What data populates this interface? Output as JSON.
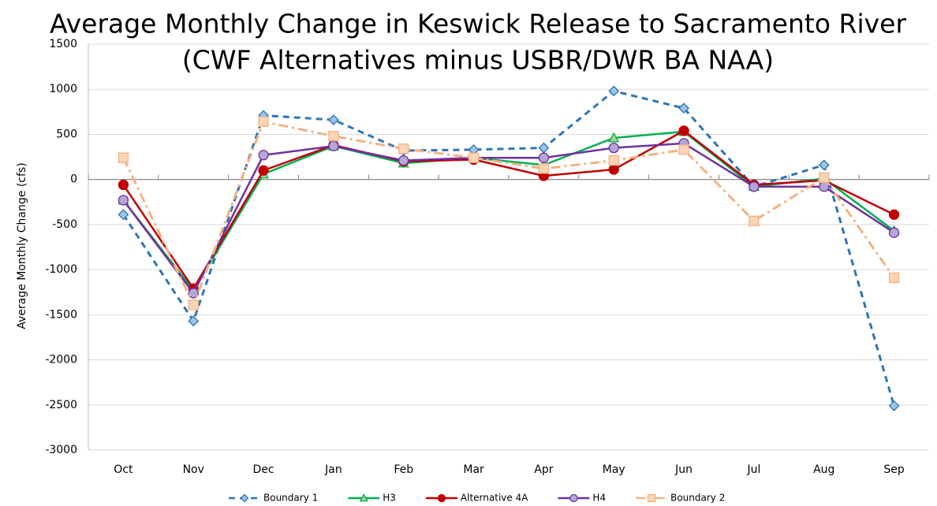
{
  "chart_data": {
    "type": "line",
    "title": "Average Monthly Change in Keswick Release to Sacramento River",
    "subtitle": "(CWF Alternatives minus USBR/DWR BA NAA)",
    "y_label": "Average Monthly Change (cfs)",
    "categories": [
      "Oct",
      "Nov",
      "Dec",
      "Jan",
      "Feb",
      "Mar",
      "Apr",
      "May",
      "Jun",
      "Jul",
      "Aug",
      "Sep"
    ],
    "series": [
      {
        "name": "Boundary 1",
        "color": "#2e75b6",
        "marker_fill": "#9dc3e6",
        "marker": "diamond",
        "dash": "8,6",
        "values": [
          -390,
          -1570,
          710,
          660,
          320,
          330,
          350,
          980,
          790,
          -80,
          160,
          -2510
        ]
      },
      {
        "name": "H3",
        "color": "#00b050",
        "marker_fill": "#a9d18e",
        "marker": "triangle",
        "dash": "none",
        "values": [
          -230,
          -1230,
          60,
          370,
          180,
          240,
          160,
          460,
          530,
          -80,
          10,
          -570
        ]
      },
      {
        "name": "Alternative 4A",
        "color": "#c00000",
        "marker_fill": "#c00000",
        "marker": "circle",
        "dash": "none",
        "values": [
          -60,
          -1210,
          100,
          380,
          200,
          220,
          40,
          110,
          540,
          -60,
          -10,
          -390
        ]
      },
      {
        "name": "H4",
        "color": "#7030a0",
        "marker_fill": "#b4a7d6",
        "marker": "circle",
        "dash": "none",
        "values": [
          -230,
          -1260,
          270,
          370,
          210,
          240,
          240,
          350,
          400,
          -80,
          -80,
          -590
        ]
      },
      {
        "name": "Boundary 2",
        "color": "#f4b183",
        "marker_fill": "#fbd5b5",
        "marker": "square",
        "dash": "12,5,3,5",
        "values": [
          240,
          -1390,
          640,
          480,
          340,
          240,
          120,
          210,
          330,
          -460,
          20,
          -1090
        ]
      }
    ],
    "ylim": [
      -3000,
      1500
    ],
    "yticks": [
      -3000,
      -2500,
      -2000,
      -1500,
      -1000,
      -500,
      0,
      500,
      1000,
      1500
    ],
    "grid": true,
    "legend": "bottom"
  }
}
